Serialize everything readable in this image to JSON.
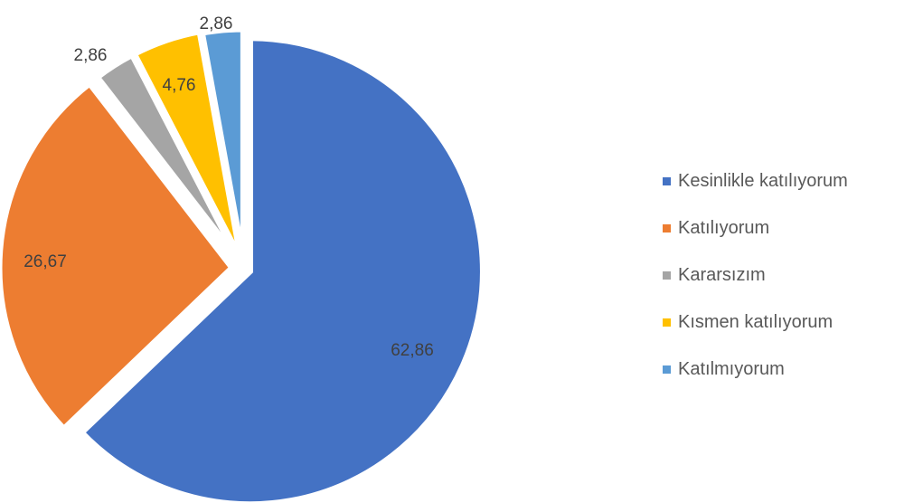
{
  "chart_data": {
    "type": "pie",
    "title": "",
    "legend_position": "right",
    "start_angle_deg": 0,
    "direction": "clockwise",
    "categories": [
      "Kesinlikle katılıyorum",
      "Katılıyorum",
      "Kararsızım",
      "Kısmen katılıyorum",
      "Katılmıyorum"
    ],
    "values": [
      62.86,
      26.67,
      2.86,
      4.76,
      2.86
    ],
    "data_labels": [
      "62,86",
      "26,67",
      "2,86",
      "4,76",
      "2,86"
    ],
    "colors": [
      "#4472C4",
      "#ED7D31",
      "#A5A5A5",
      "#FFC000",
      "#5B9BD5"
    ],
    "exploded": true
  }
}
